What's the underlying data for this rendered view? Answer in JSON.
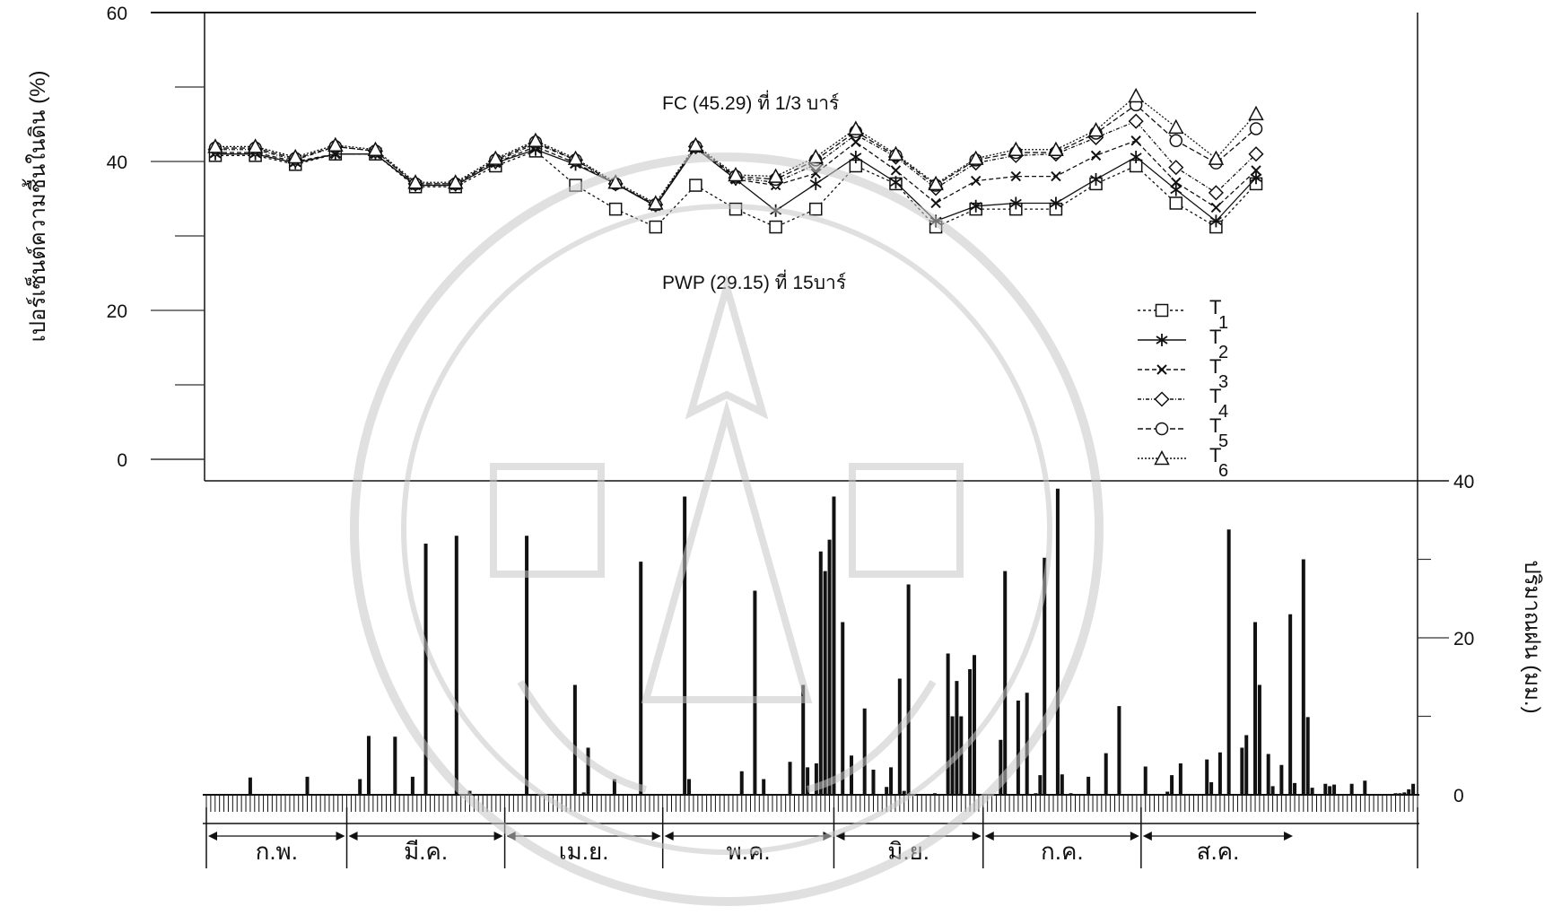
{
  "chart_data": [
    {
      "type": "line",
      "ylabel": "เปอร์เซ็นต์ความชื้นในดิน (%)",
      "ylim": [
        0,
        60
      ],
      "y_ticks": [
        "60",
        "40",
        "20",
        "0"
      ],
      "annotations": [
        "FC (45.29) ที่ 1/3 บาร์",
        "PWP (29.15) ที่ 15บาร์"
      ],
      "legend_position": "right",
      "series": [
        {
          "name": "T",
          "subscript": "1",
          "marker": "square",
          "values": [
            40.8,
            40.8,
            39.6,
            41.0,
            41.0,
            36.6,
            36.6,
            39.4,
            41.4,
            36.8,
            33.6,
            31.2,
            36.8,
            33.6,
            31.2,
            33.6,
            39.4,
            37.0,
            31.2,
            33.6,
            33.6,
            33.6,
            37.0,
            39.4,
            34.4,
            31.2,
            37.0
          ]
        },
        {
          "name": "T",
          "subscript": "2",
          "marker": "asterisk",
          "values": [
            41.0,
            41.0,
            39.8,
            41.0,
            41.0,
            36.8,
            36.8,
            39.8,
            41.6,
            39.6,
            37.0,
            34.0,
            41.8,
            37.6,
            33.4,
            37.0,
            40.6,
            37.2,
            32.0,
            34.0,
            34.4,
            34.4,
            37.6,
            40.6,
            36.2,
            32.0,
            37.8
          ]
        },
        {
          "name": "T",
          "subscript": "3",
          "marker": "x",
          "values": [
            41.2,
            41.2,
            40.0,
            41.0,
            41.0,
            36.8,
            36.8,
            39.8,
            42.0,
            39.8,
            37.0,
            34.0,
            41.8,
            37.6,
            36.8,
            38.4,
            42.6,
            38.8,
            34.4,
            37.4,
            38.0,
            38.0,
            40.8,
            42.8,
            37.2,
            33.8,
            38.8
          ]
        },
        {
          "name": "T",
          "subscript": "4",
          "marker": "diamond",
          "values": [
            41.6,
            41.6,
            40.2,
            42.0,
            41.4,
            37.0,
            37.0,
            40.0,
            42.4,
            40.2,
            37.0,
            34.2,
            42.0,
            37.8,
            37.2,
            39.6,
            43.6,
            40.6,
            36.4,
            39.8,
            40.8,
            41.0,
            43.2,
            45.4,
            39.2,
            35.8,
            41.0
          ]
        },
        {
          "name": "T",
          "subscript": "5",
          "marker": "circle",
          "values": [
            41.8,
            41.8,
            40.4,
            42.0,
            41.4,
            37.0,
            37.0,
            40.2,
            42.6,
            40.2,
            37.0,
            34.2,
            42.0,
            38.0,
            37.6,
            40.2,
            44.0,
            40.8,
            36.8,
            40.2,
            41.2,
            41.2,
            43.8,
            47.6,
            42.8,
            39.8,
            44.4
          ]
        },
        {
          "name": "T",
          "subscript": "6",
          "marker": "triangle",
          "values": [
            42.0,
            42.0,
            40.6,
            42.2,
            41.6,
            37.2,
            37.2,
            40.4,
            42.8,
            40.4,
            37.2,
            34.4,
            42.2,
            38.2,
            38.0,
            40.6,
            44.4,
            41.0,
            37.0,
            40.4,
            41.6,
            41.6,
            44.2,
            48.8,
            44.6,
            40.4,
            46.4
          ]
        }
      ]
    },
    {
      "type": "bar",
      "ylabel": "ปริมาณฝน (มม.)",
      "ylim": [
        0,
        40
      ],
      "y_ticks": [
        "40",
        "20",
        "0"
      ],
      "months": [
        "ก.พ.",
        "มี.ค.",
        "เม.ย.",
        "พ.ค.",
        "มิ.ย.",
        "ก.ค.",
        "ส.ค."
      ],
      "days": [
        10,
        23,
        35,
        37,
        43,
        47,
        50,
        57,
        60,
        73,
        84,
        86,
        87,
        93,
        99,
        109,
        110,
        122,
        125,
        127,
        133,
        136,
        137,
        139,
        140,
        141,
        142,
        143,
        145,
        147,
        150,
        152,
        155,
        156,
        158,
        159,
        160,
        166,
        169,
        170,
        171,
        172,
        174,
        175,
        181,
        182,
        185,
        187,
        189,
        190,
        191,
        194,
        195,
        197,
        201,
        205,
        208,
        214,
        219,
        220,
        222,
        228,
        229,
        231,
        233,
        236,
        237,
        239,
        240,
        242,
        243,
        245,
        247,
        248,
        250,
        251,
        252,
        255,
        256,
        257,
        261,
        264,
        271,
        272,
        273,
        274,
        275
      ],
      "values": [
        2.2,
        2.3,
        2.0,
        7.5,
        7.4,
        2.3,
        32.0,
        33.0,
        0.5,
        33.0,
        14.0,
        0.3,
        6.0,
        2.0,
        29.7,
        38.0,
        2.0,
        3.0,
        26.0,
        2.0,
        4.2,
        14.0,
        3.5,
        4.0,
        31.0,
        28.5,
        32.5,
        38.0,
        22.0,
        5.0,
        11.0,
        3.2,
        1.0,
        3.5,
        14.8,
        0.5,
        26.8,
        0.2,
        18.0,
        10.0,
        14.5,
        10.0,
        16.0,
        17.8,
        7.0,
        28.5,
        12.0,
        13.0,
        0.2,
        2.5,
        30.2,
        39.0,
        2.6,
        0.2,
        2.3,
        5.3,
        11.3,
        3.6,
        0.4,
        2.5,
        4.0,
        4.5,
        1.6,
        5.4,
        33.8,
        6.0,
        7.6,
        22.0,
        14.0,
        5.2,
        1.1,
        3.8,
        23.0,
        1.5,
        30.0,
        9.9,
        0.9,
        1.4,
        1.1,
        1.3,
        1.4,
        1.8,
        0.2,
        0.2,
        0.3,
        0.7,
        1.4
      ]
    }
  ]
}
